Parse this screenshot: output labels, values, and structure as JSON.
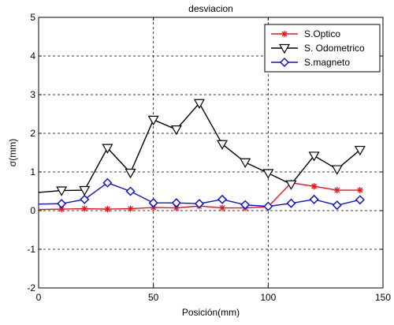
{
  "chart_data": {
    "type": "line",
    "title": "desviacion",
    "xlabel": "Posición(mm)",
    "ylabel": "σ(mm)",
    "xlim": [
      0,
      150
    ],
    "ylim": [
      -2,
      5
    ],
    "xticks": [
      0,
      50,
      100,
      150
    ],
    "yticks": [
      -2,
      -1,
      0,
      1,
      2,
      3,
      4,
      5
    ],
    "grid": true,
    "legend_position": "top-right",
    "series": [
      {
        "name": "S.Optico",
        "color": "#e8141b",
        "marker": "asterisk",
        "x": [
          0,
          10,
          20,
          30,
          40,
          50,
          60,
          70,
          80,
          90,
          100,
          110,
          120,
          130,
          140
        ],
        "y": [
          0.03,
          0.04,
          0.05,
          0.04,
          0.05,
          0.08,
          0.07,
          0.12,
          0.07,
          0.07,
          0.1,
          0.72,
          0.63,
          0.53,
          0.53
        ]
      },
      {
        "name": "S. Odometrico",
        "color": "#000000",
        "marker": "triangle-down",
        "x": [
          0,
          10,
          20,
          30,
          40,
          50,
          60,
          70,
          80,
          90,
          100,
          110,
          120,
          130,
          140
        ],
        "y": [
          0.47,
          0.52,
          0.53,
          1.62,
          0.98,
          2.35,
          2.1,
          2.78,
          1.72,
          1.25,
          0.97,
          0.68,
          1.42,
          1.07,
          1.57
        ]
      },
      {
        "name": "S.magneto",
        "color": "#1414c8",
        "marker": "diamond",
        "x": [
          0,
          10,
          20,
          30,
          40,
          50,
          60,
          70,
          80,
          90,
          100,
          110,
          120,
          130,
          140
        ],
        "y": [
          0.17,
          0.18,
          0.29,
          0.72,
          0.5,
          0.2,
          0.2,
          0.18,
          0.29,
          0.15,
          0.11,
          0.19,
          0.29,
          0.14,
          0.28
        ]
      }
    ]
  }
}
